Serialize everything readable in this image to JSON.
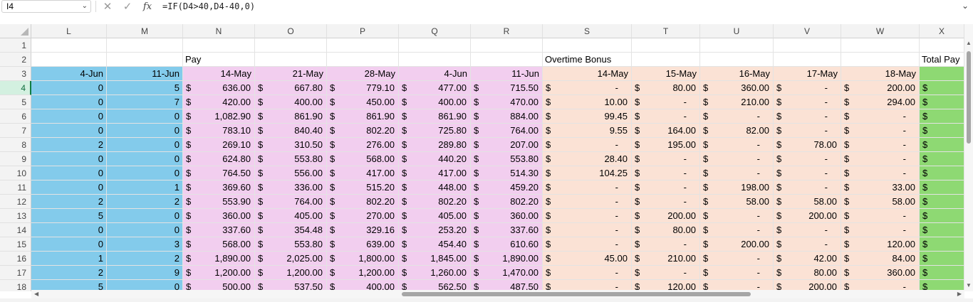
{
  "formula_bar": {
    "name_box": "I4",
    "fx_label": "fx",
    "formula": "=IF(D4>40,D4-40,0)"
  },
  "columns": [
    "L",
    "M",
    "N",
    "O",
    "P",
    "Q",
    "R",
    "S",
    "T",
    "U",
    "V",
    "W",
    "X"
  ],
  "row_numbers": [
    "1",
    "2",
    "3",
    "4",
    "5",
    "6",
    "7",
    "8",
    "9",
    "10",
    "11",
    "12",
    "13",
    "14",
    "15",
    "16",
    "17",
    "18"
  ],
  "selected_row": "4",
  "colors": {
    "blue": "#83cbeb",
    "pink": "#f2ceef",
    "peach": "#fbe2d5",
    "green": "#8ed973",
    "selected": "#107c41"
  },
  "section_headers": {
    "pay": "Pay",
    "overtime": "Overtime Bonus",
    "total": "Total Pay"
  },
  "date_headers": {
    "L": "4-Jun",
    "M": "11-Jun",
    "N": "14-May",
    "O": "21-May",
    "P": "28-May",
    "Q": "4-Jun",
    "R": "11-Jun",
    "S": "14-May",
    "T": "15-May",
    "U": "16-May",
    "V": "17-May",
    "W": "18-May"
  },
  "currency_symbol": "$",
  "rows": [
    {
      "L": "0",
      "M": "5",
      "N": "636.00",
      "O": "667.80",
      "P": "779.10",
      "Q": "477.00",
      "R": "715.50",
      "S": "-",
      "T": "80.00",
      "U": "360.00",
      "V": "-",
      "W": "200.00"
    },
    {
      "L": "0",
      "M": "7",
      "N": "420.00",
      "O": "400.00",
      "P": "450.00",
      "Q": "400.00",
      "R": "470.00",
      "S": "10.00",
      "T": "-",
      "U": "210.00",
      "V": "-",
      "W": "294.00"
    },
    {
      "L": "0",
      "M": "0",
      "N": "1,082.90",
      "O": "861.90",
      "P": "861.90",
      "Q": "861.90",
      "R": "884.00",
      "S": "99.45",
      "T": "-",
      "U": "-",
      "V": "-",
      "W": "-"
    },
    {
      "L": "0",
      "M": "0",
      "N": "783.10",
      "O": "840.40",
      "P": "802.20",
      "Q": "725.80",
      "R": "764.00",
      "S": "9.55",
      "T": "164.00",
      "U": "82.00",
      "V": "-",
      "W": "-"
    },
    {
      "L": "2",
      "M": "0",
      "N": "269.10",
      "O": "310.50",
      "P": "276.00",
      "Q": "289.80",
      "R": "207.00",
      "S": "-",
      "T": "195.00",
      "U": "-",
      "V": "78.00",
      "W": "-"
    },
    {
      "L": "0",
      "M": "0",
      "N": "624.80",
      "O": "553.80",
      "P": "568.00",
      "Q": "440.20",
      "R": "553.80",
      "S": "28.40",
      "T": "-",
      "U": "-",
      "V": "-",
      "W": "-"
    },
    {
      "L": "0",
      "M": "0",
      "N": "764.50",
      "O": "556.00",
      "P": "417.00",
      "Q": "417.00",
      "R": "514.30",
      "S": "104.25",
      "T": "-",
      "U": "-",
      "V": "-",
      "W": "-"
    },
    {
      "L": "0",
      "M": "1",
      "N": "369.60",
      "O": "336.00",
      "P": "515.20",
      "Q": "448.00",
      "R": "459.20",
      "S": "-",
      "T": "-",
      "U": "198.00",
      "V": "-",
      "W": "33.00"
    },
    {
      "L": "2",
      "M": "2",
      "N": "553.90",
      "O": "764.00",
      "P": "802.20",
      "Q": "802.20",
      "R": "802.20",
      "S": "-",
      "T": "-",
      "U": "58.00",
      "V": "58.00",
      "W": "58.00"
    },
    {
      "L": "5",
      "M": "0",
      "N": "360.00",
      "O": "405.00",
      "P": "270.00",
      "Q": "405.00",
      "R": "360.00",
      "S": "-",
      "T": "200.00",
      "U": "-",
      "V": "200.00",
      "W": "-"
    },
    {
      "L": "0",
      "M": "0",
      "N": "337.60",
      "O": "354.48",
      "P": "329.16",
      "Q": "253.20",
      "R": "337.60",
      "S": "-",
      "T": "80.00",
      "U": "-",
      "V": "-",
      "W": "-"
    },
    {
      "L": "0",
      "M": "3",
      "N": "568.00",
      "O": "553.80",
      "P": "639.00",
      "Q": "454.40",
      "R": "610.60",
      "S": "-",
      "T": "-",
      "U": "200.00",
      "V": "-",
      "W": "120.00"
    },
    {
      "L": "1",
      "M": "2",
      "N": "1,890.00",
      "O": "2,025.00",
      "P": "1,800.00",
      "Q": "1,845.00",
      "R": "1,890.00",
      "S": "45.00",
      "T": "210.00",
      "U": "-",
      "V": "42.00",
      "W": "84.00"
    },
    {
      "L": "2",
      "M": "9",
      "N": "1,200.00",
      "O": "1,200.00",
      "P": "1,200.00",
      "Q": "1,260.00",
      "R": "1,470.00",
      "S": "-",
      "T": "-",
      "U": "-",
      "V": "80.00",
      "W": "360.00"
    },
    {
      "L": "5",
      "M": "0",
      "N": "500.00",
      "O": "537.50",
      "P": "400.00",
      "Q": "562.50",
      "R": "487.50",
      "S": "-",
      "T": "120.00",
      "U": "-",
      "V": "200.00",
      "W": "-"
    }
  ]
}
